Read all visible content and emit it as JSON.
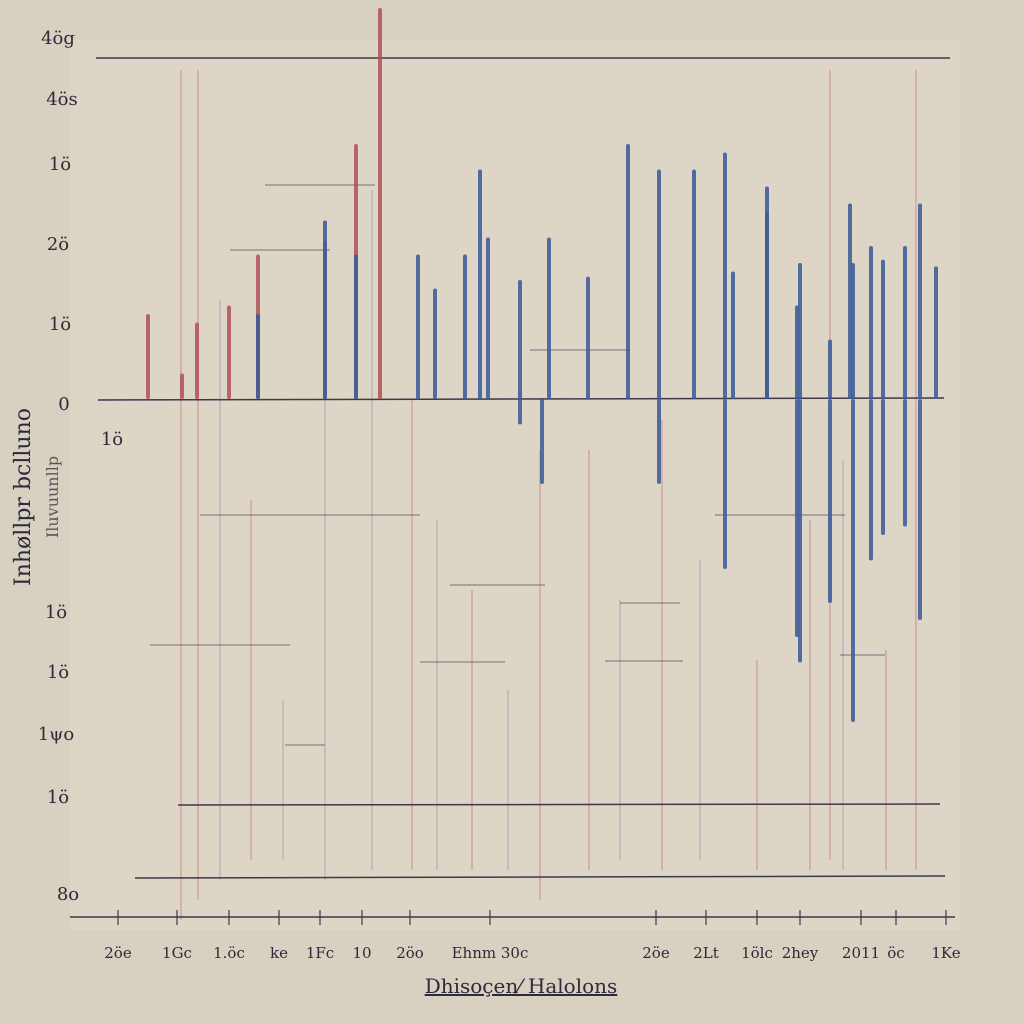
{
  "colors": {
    "background": "#d8d0c0",
    "paper": "#e1d9c9",
    "axis": "#3a3a4a",
    "red_series": "#b05058",
    "blue_series": "#3d5c9a",
    "faint_red": "#c98a84",
    "faint_purple": "#a9a0b4"
  },
  "chart_data": {
    "type": "bar",
    "title": "",
    "xlabel": "Dhisoçen⁄ Halolons",
    "ylabel": "Inhøllpr bclluno",
    "ylabel_secondary": "Iluvuunllp",
    "y_tick_labels": [
      "4ög",
      "4ös",
      "1ö",
      "2ö",
      "1ö",
      "0",
      "1ö",
      "1ö",
      "1ö",
      "1ψo",
      "1ö",
      "8o"
    ],
    "x_tick_labels": [
      "2öe",
      "1Gc",
      "1.öc",
      "ke",
      "1Fc",
      "10",
      "2öo",
      "Ehnm 30c",
      "2öe",
      "2Lt",
      "1ölc",
      "2hey",
      "2011",
      "öc",
      "1Ke"
    ],
    "zero_label": "0",
    "series": [
      {
        "color_key": "red_series",
        "values": [
          0.5,
          0.15,
          0.45,
          0.55,
          0.85,
          0.93,
          1.5,
          2.3
        ]
      },
      {
        "color_key": "blue_series",
        "values": [
          0.5,
          1.05,
          0.85,
          0.85,
          0.65,
          0.85,
          1.35,
          0.95,
          0.7,
          0.95,
          0.72,
          1.5,
          1.35,
          1.35,
          1.45,
          0.75,
          1.1,
          0.55,
          0.8,
          0.35,
          1.15,
          0.8,
          0.9,
          0.82,
          0.9,
          1.15,
          0.78,
          1.25
        ]
      },
      {
        "color_key": "blue_series",
        "values": [
          -0.15,
          -0.5,
          -0.5,
          -1.0,
          -1.4,
          -1.55,
          -1.2,
          -1.9,
          -0.95,
          -0.8,
          -0.75,
          -1.3
        ]
      }
    ],
    "ylim": [
      -3,
      2.5
    ],
    "grid": false,
    "legend": "none"
  }
}
